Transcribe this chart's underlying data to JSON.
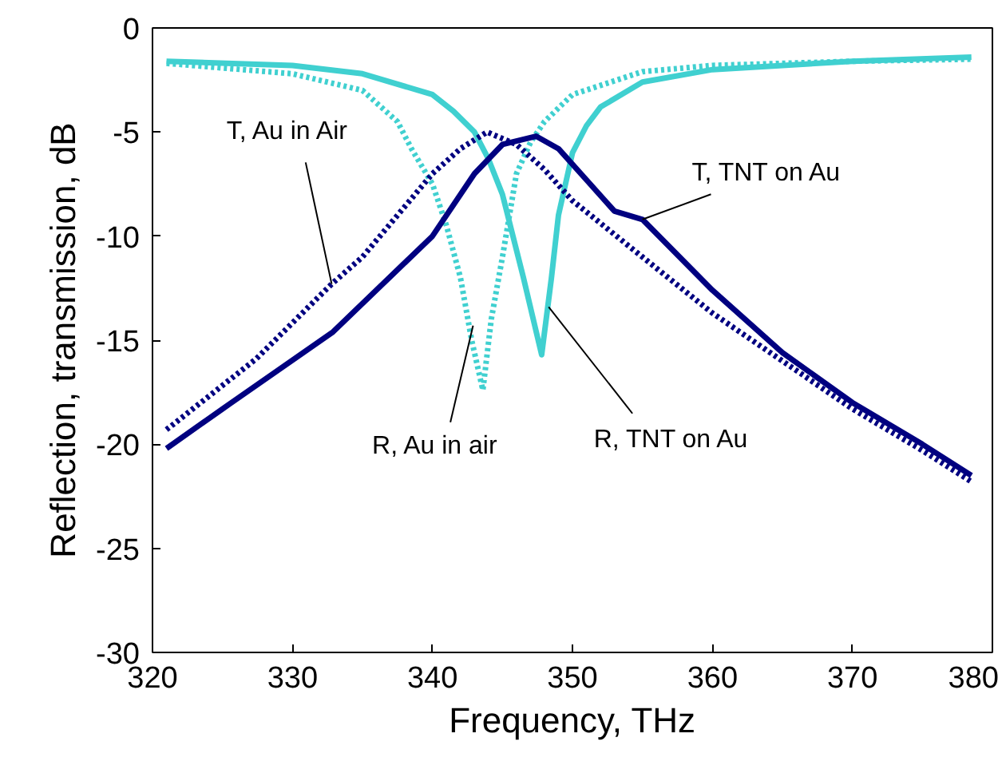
{
  "chart_data": {
    "type": "line",
    "xlabel": "Frequency, THz",
    "ylabel": "Reflection, transmission, dB",
    "xlim": [
      320,
      380
    ],
    "ylim": [
      -30,
      0
    ],
    "xticks": [
      320,
      330,
      340,
      350,
      360,
      370,
      380
    ],
    "yticks": [
      -30,
      -25,
      -20,
      -15,
      -10,
      -5,
      0
    ],
    "grid": false,
    "series": [
      {
        "color": "#40d0d0",
        "line_style": "dotted",
        "x": [
          321,
          330,
          335,
          337.5,
          338.5,
          340,
          341,
          342,
          342.8,
          343.6,
          344.2,
          345,
          346,
          347,
          348,
          350,
          355,
          360,
          370,
          378.5
        ],
        "values": [
          -1.7,
          -2.2,
          -3,
          -4.5,
          -5.8,
          -7.5,
          -9.5,
          -12,
          -15,
          -17.4,
          -14,
          -11,
          -7,
          -5.5,
          -4.5,
          -3.2,
          -2.1,
          -1.8,
          -1.6,
          -1.5
        ]
      },
      {
        "color": "#40d0d0",
        "line_style": "solid",
        "x": [
          321,
          330,
          335,
          340,
          341.5,
          343,
          344,
          345,
          346.5,
          347.8,
          348.5,
          349,
          350,
          351,
          352,
          355,
          360,
          370,
          378.5
        ],
        "values": [
          -1.6,
          -1.8,
          -2.2,
          -3.2,
          -4,
          -5,
          -6.3,
          -8,
          -12,
          -15.7,
          -12,
          -9,
          -6,
          -4.7,
          -3.8,
          -2.6,
          -2.0,
          -1.6,
          -1.4
        ]
      },
      {
        "color": "#000080",
        "line_style": "dotted",
        "x": [
          321,
          327.4,
          332.8,
          335,
          340,
          342,
          343.9,
          346,
          348,
          350,
          355,
          360,
          365,
          370,
          375,
          378.5
        ],
        "values": [
          -19.3,
          -15.9,
          -12.3,
          -11,
          -7,
          -5.8,
          -5.0,
          -5.6,
          -6.8,
          -8.3,
          -11,
          -13.7,
          -16,
          -18.3,
          -20.3,
          -21.8
        ]
      },
      {
        "color": "#000080",
        "line_style": "solid",
        "x": [
          321,
          325,
          332.9,
          340,
          343,
          345,
          347.4,
          349,
          351,
          353,
          355,
          360,
          365,
          370,
          375,
          378.5
        ],
        "values": [
          -20.2,
          -18.3,
          -14.6,
          -10,
          -7,
          -5.6,
          -5.2,
          -5.8,
          -7.3,
          -8.8,
          -9.2,
          -12.6,
          -15.6,
          -18,
          -20,
          -21.5
        ]
      }
    ],
    "annotations": [
      {
        "text": "T, Au in Air",
        "x": 332.8,
        "y": -12.3
      },
      {
        "text": "T, TNT on Au",
        "x": 355,
        "y": -9.2
      },
      {
        "text": "R, Au in air",
        "x": 342.9,
        "y": -14.3
      },
      {
        "text": "R, TNT on Au",
        "x": 348.3,
        "y": -13.4
      }
    ]
  }
}
